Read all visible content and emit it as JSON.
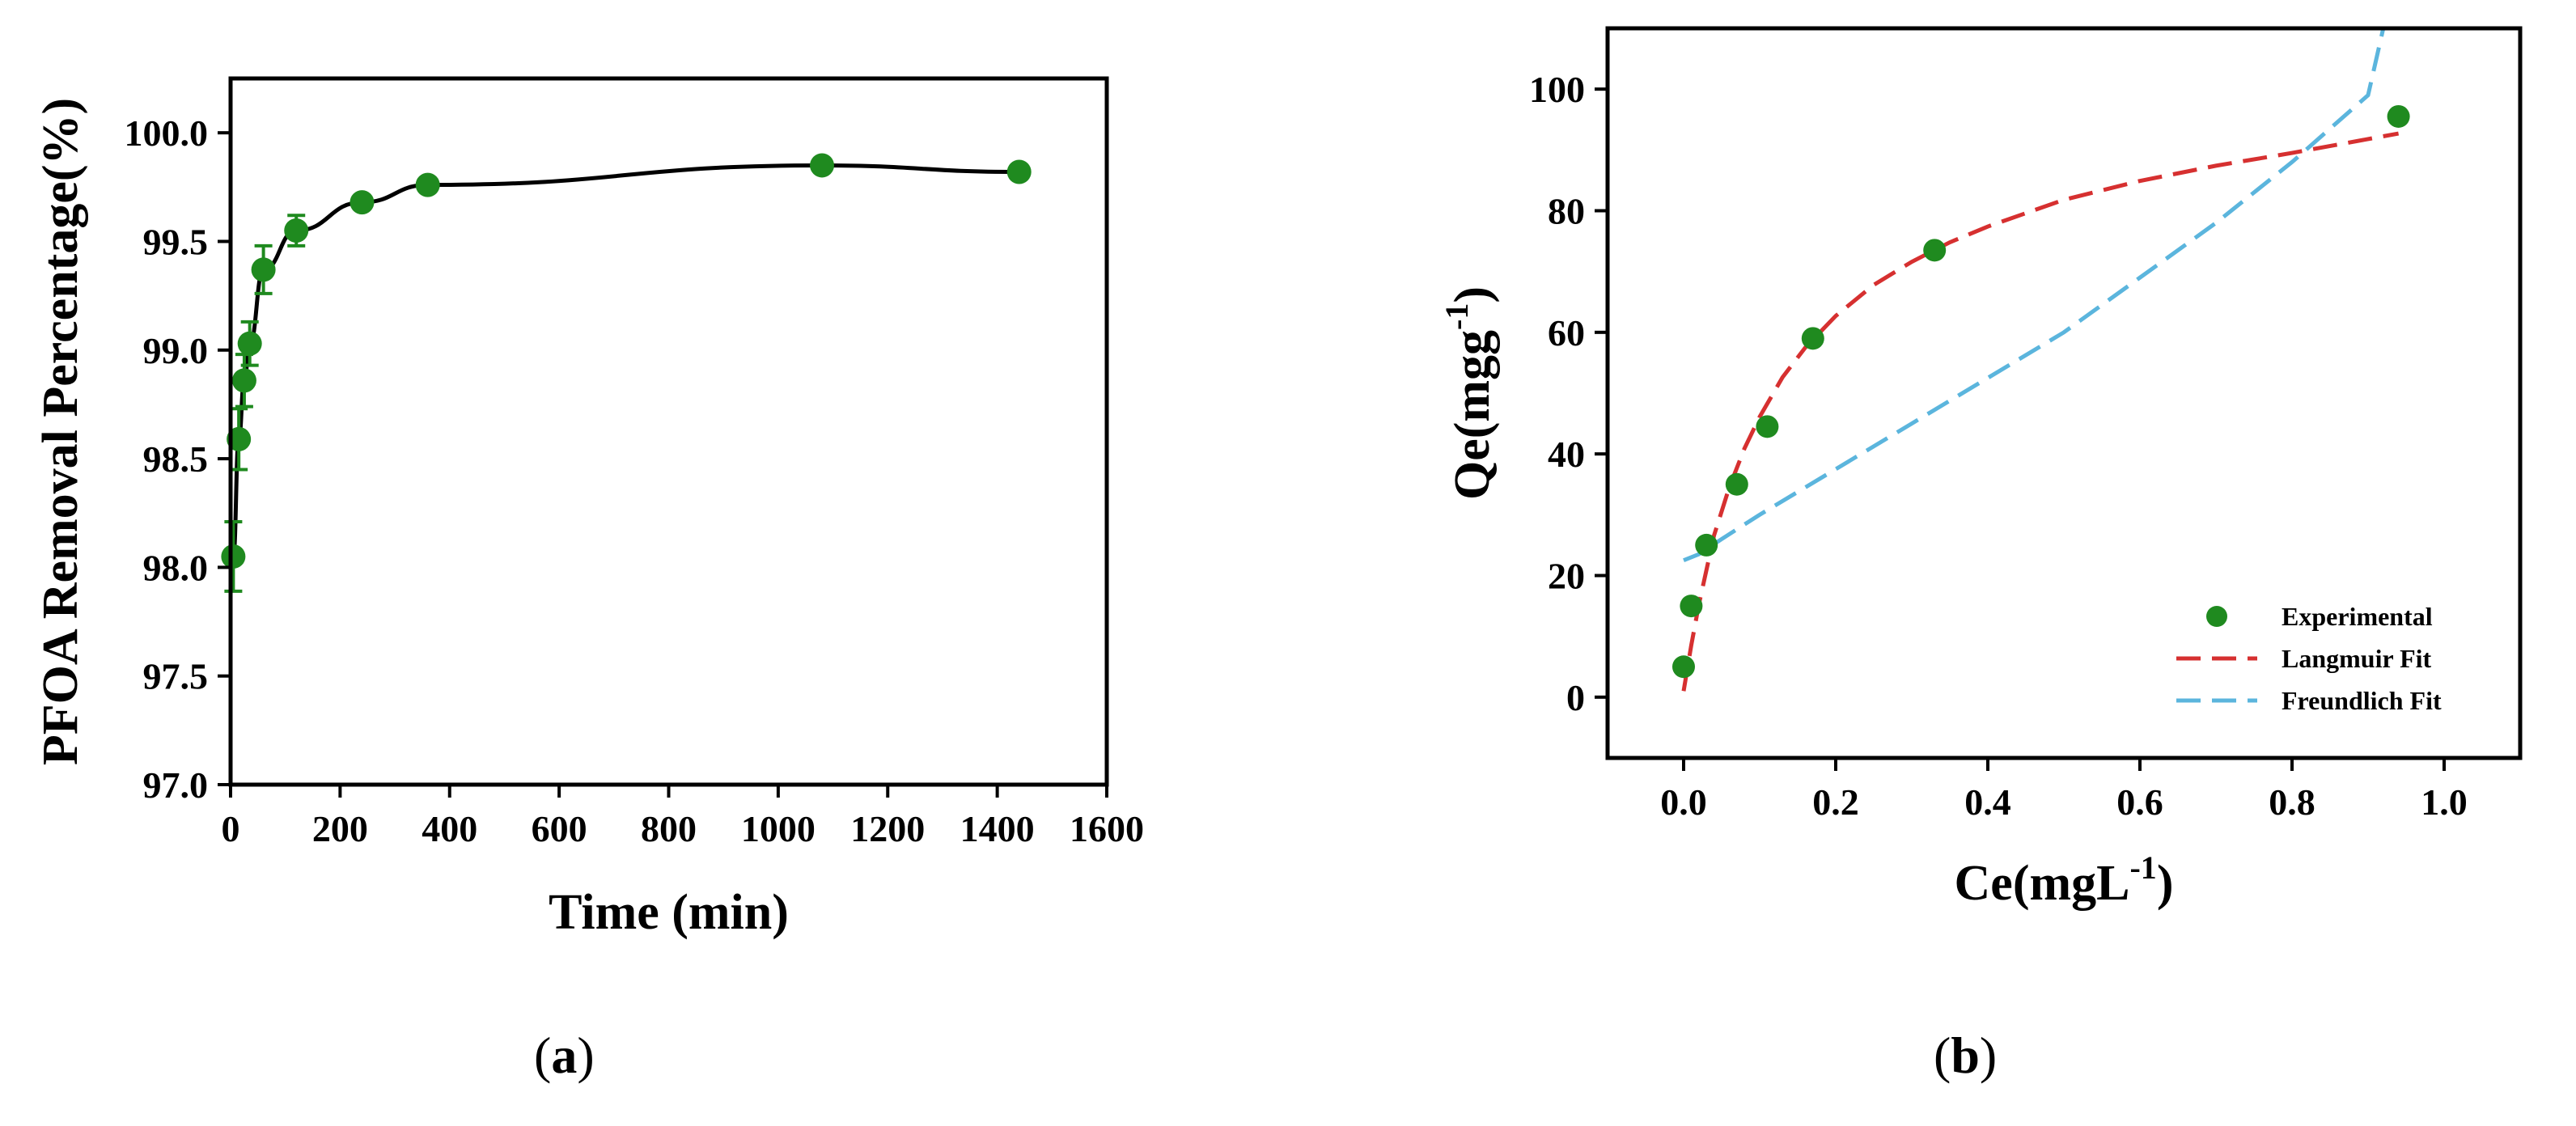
{
  "panels": {
    "a": {
      "label_open": "(",
      "label_letter": "a",
      "label_close": ")"
    },
    "b": {
      "label_open": "(",
      "label_letter": "b",
      "label_close": ")"
    }
  },
  "chart_data": [
    {
      "type": "line",
      "panel": "a",
      "xlabel": "Time (min)",
      "ylabel": "PFOA Removal Percentage(%)",
      "xlim": [
        0,
        1600
      ],
      "ylim": [
        97.0,
        100.25
      ],
      "xticks": [
        0,
        200,
        400,
        600,
        800,
        1000,
        1200,
        1400,
        1600
      ],
      "yticks": [
        97.0,
        97.5,
        98.0,
        98.5,
        99.0,
        99.5,
        100.0
      ],
      "ytick_labels": [
        "97.0",
        "97.5",
        "98.0",
        "98.5",
        "99.0",
        "99.5",
        "100.0"
      ],
      "grid": false,
      "marker_color": "#1f8a1f",
      "line_color": "#000000",
      "series": [
        {
          "x": [
            5,
            15,
            25,
            35,
            60,
            120,
            240,
            360,
            1080,
            1440
          ],
          "y": [
            98.05,
            98.59,
            98.86,
            99.03,
            99.37,
            99.55,
            99.68,
            99.76,
            99.85,
            99.82
          ],
          "error": [
            0.16,
            0.14,
            0.12,
            0.1,
            0.11,
            0.07,
            0.03,
            0.03,
            0.03,
            0.03
          ]
        }
      ]
    },
    {
      "type": "scatter",
      "panel": "b",
      "xlabel": "Ce(mgL",
      "xlabel_sup": "-1",
      "xlabel_end": ")",
      "ylabel": "Qe(mgg",
      "ylabel_sup": "-1",
      "ylabel_end": ")",
      "xlim": [
        -0.1,
        1.1
      ],
      "ylim": [
        -10,
        110
      ],
      "xticks": [
        0.0,
        0.2,
        0.4,
        0.6,
        0.8,
        1.0
      ],
      "xtick_labels": [
        "0.0",
        "0.2",
        "0.4",
        "0.6",
        "0.8",
        "1.0"
      ],
      "yticks": [
        0,
        20,
        40,
        60,
        80,
        100
      ],
      "grid": false,
      "legend_position": "bottom-right",
      "series": [
        {
          "name": "Experimental",
          "style": "markers",
          "color": "#1f8a1f",
          "x": [
            0.0,
            0.01,
            0.03,
            0.07,
            0.11,
            0.17,
            0.33,
            0.94
          ],
          "y": [
            5,
            15,
            25,
            35,
            44.5,
            59,
            73.5,
            95.5
          ]
        },
        {
          "name": "Langmuir Fit",
          "style": "dashed",
          "color": "#d63030",
          "x": [
            0.0,
            0.01,
            0.02,
            0.04,
            0.06,
            0.08,
            0.1,
            0.13,
            0.16,
            0.2,
            0.25,
            0.3,
            0.35,
            0.4,
            0.5,
            0.6,
            0.7,
            0.8,
            0.94
          ],
          "y": [
            1,
            8.5,
            15.2,
            26.6,
            34.5,
            40.9,
            46.1,
            52.6,
            57.5,
            62.7,
            67.8,
            71.6,
            74.8,
            77.4,
            81.8,
            84.9,
            87.4,
            89.5,
            92.7
          ]
        },
        {
          "name": "Freundlich Fit",
          "style": "dashed",
          "color": "#5bb5dd",
          "x": [
            0.0,
            0.02,
            0.05,
            0.1,
            0.2,
            0.3,
            0.4,
            0.5,
            0.6,
            0.7,
            0.8,
            0.9,
            0.92
          ],
          "y": [
            22.5,
            23.5,
            26,
            30,
            37.5,
            45,
            52.5,
            60,
            69,
            78,
            88,
            99,
            110
          ]
        }
      ]
    }
  ]
}
